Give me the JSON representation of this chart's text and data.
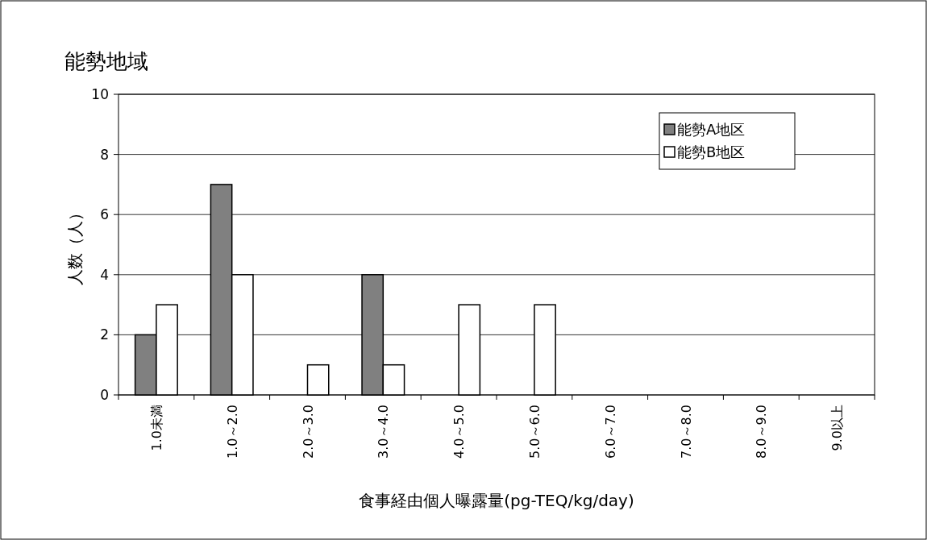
{
  "chart_data": {
    "type": "bar",
    "title": "能勢地域",
    "xlabel": "食事経由個人曝露量(pg-TEQ/kg/day)",
    "ylabel": "人数（人）",
    "categories": [
      "1.0未満",
      "1.0～2.0",
      "2.0～3.0",
      "3.0～4.0",
      "4.0～5.0",
      "5.0～6.0",
      "6.0～7.0",
      "7.0～8.0",
      "8.0～9.0",
      "9.0以上"
    ],
    "series": [
      {
        "name": "能勢A地区",
        "color": "#808080",
        "values": [
          2,
          7,
          0,
          4,
          0,
          0,
          0,
          0,
          0,
          0
        ]
      },
      {
        "name": "能勢B地区",
        "color": "#ffffff",
        "values": [
          3,
          4,
          1,
          1,
          3,
          3,
          0,
          0,
          0,
          0
        ]
      }
    ],
    "ylim": [
      0,
      10
    ],
    "yticks": [
      0,
      2,
      4,
      6,
      8,
      10
    ],
    "grid": "y",
    "legend": "top right"
  }
}
